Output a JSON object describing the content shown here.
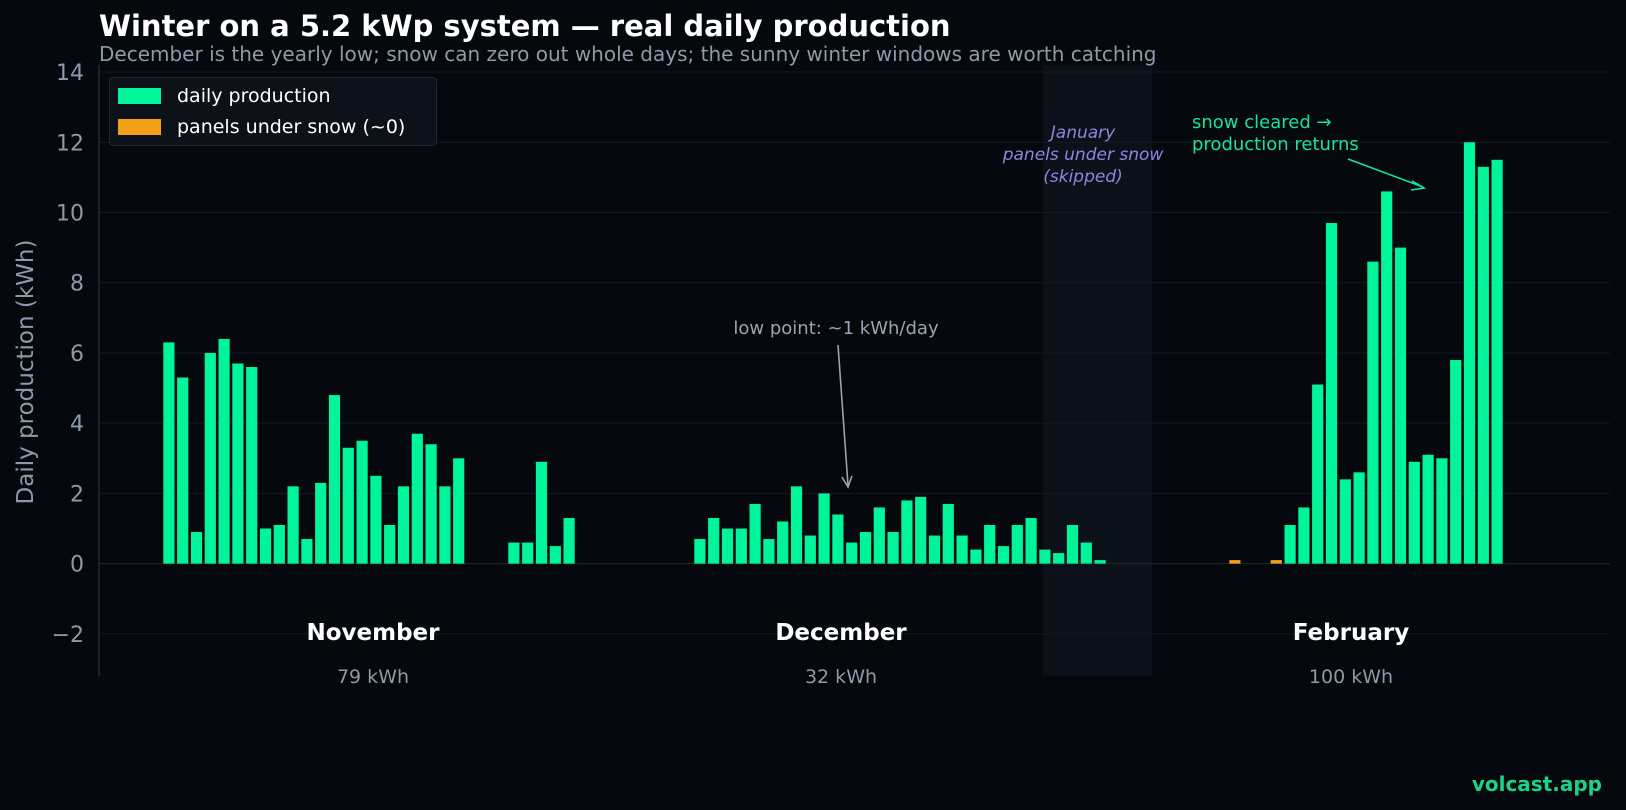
{
  "title": "Winter on a 5.2 kWp system — real daily production",
  "subtitle": "December is the yearly low; snow can zero out whole days; the sunny winter windows are worth catching",
  "watermark": "volcast.app",
  "legend": {
    "items": [
      {
        "label": "daily production",
        "color": "#00f59b"
      },
      {
        "label": "panels under snow (~0)",
        "color": "#f5a01a"
      }
    ]
  },
  "colors": {
    "production": "#00f59b",
    "snow": "#f5a01a",
    "background": "#05080c",
    "gap": "#0c1119"
  },
  "annotations": {
    "low_point": "low point: ~1 kWh/day",
    "snow_cleared_line1": "snow cleared →",
    "snow_cleared_line2": "production returns",
    "gap_line1": "January",
    "gap_line2": "panels under snow",
    "gap_line3": "(skipped)"
  },
  "chart_data": {
    "type": "bar",
    "ylabel": "Daily production (kWh)",
    "xlabel": "",
    "ylim": [
      -3.2,
      14.2
    ],
    "yticks": [
      -2,
      0,
      2,
      4,
      6,
      8,
      10,
      12,
      14
    ],
    "grid": true,
    "legend_position": "top-left",
    "months": [
      {
        "name": "November",
        "total": "79 kWh"
      },
      {
        "name": "December",
        "total": "32 kWh"
      },
      {
        "name": "February",
        "total": "100 kWh"
      }
    ],
    "series": [
      {
        "name": "daily production",
        "segments": [
          {
            "month": "November",
            "values": [
              6.3,
              5.3,
              0.9,
              6.0,
              6.4,
              5.7,
              5.6,
              1.0,
              1.1,
              2.2,
              0.7,
              2.3,
              4.8,
              3.3,
              3.5,
              2.5,
              1.1,
              2.2,
              3.7,
              3.4,
              2.2,
              3.0,
              null,
              null,
              null,
              0.6,
              0.6,
              2.9,
              0.5,
              1.3
            ]
          },
          {
            "month": "December",
            "values": [
              null,
              null,
              null,
              null,
              null,
              0.7,
              1.3,
              1.0,
              1.0,
              1.7,
              0.7,
              1.2,
              2.2,
              0.8,
              2.0,
              1.4,
              0.6,
              0.9,
              1.6,
              0.9,
              1.8,
              1.9,
              0.8,
              1.7,
              0.8,
              0.4,
              1.1,
              0.5,
              1.1,
              1.3,
              0.4,
              0.3,
              1.1,
              0.6,
              0.1
            ]
          },
          {
            "month": "February",
            "values": [
              null,
              null,
              null,
              null,
              null,
              null,
              null,
              null,
              null,
              null,
              null,
              null,
              null,
              null,
              1.1,
              1.6,
              5.1,
              9.7,
              2.4,
              2.6,
              8.6,
              10.6,
              9.0,
              2.9,
              3.1,
              3.0,
              5.8,
              12.0,
              11.3,
              11.5
            ]
          }
        ]
      },
      {
        "name": "panels under snow (~0)",
        "segments": [
          {
            "month": "February",
            "values": [
              null,
              null,
              null,
              null,
              null,
              null,
              null,
              null,
              null,
              null,
              0.1,
              null,
              null,
              0.1,
              null,
              null,
              null,
              null,
              null,
              null,
              null,
              null,
              null,
              null,
              null,
              null,
              null,
              null,
              null,
              null
            ]
          }
        ]
      }
    ]
  }
}
